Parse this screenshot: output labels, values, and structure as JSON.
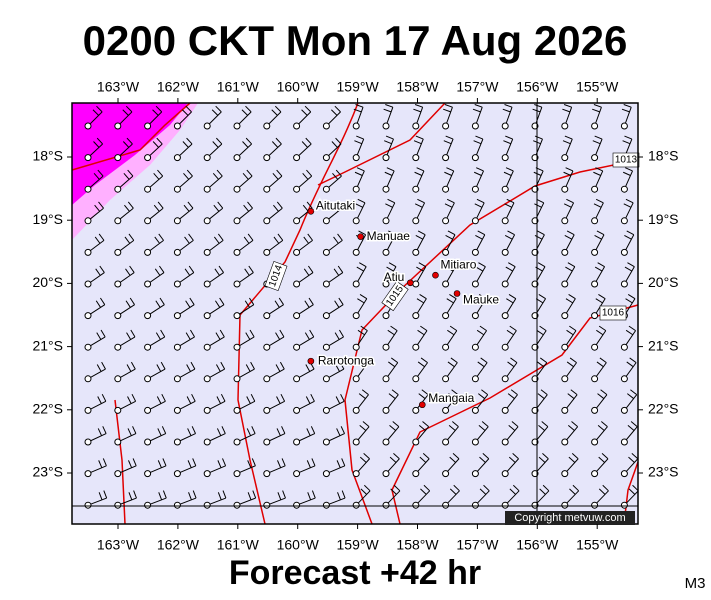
{
  "title": "0200 CKT Mon 17 Aug 2026",
  "map": {
    "lon_ticks": [
      {
        "value": -163,
        "label": "163°W"
      },
      {
        "value": -162,
        "label": "162°W"
      },
      {
        "value": -161,
        "label": "161°W"
      },
      {
        "value": -160,
        "label": "160°W"
      },
      {
        "value": -159,
        "label": "159°W"
      },
      {
        "value": -158,
        "label": "158°W"
      },
      {
        "value": -157,
        "label": "157°W"
      },
      {
        "value": -156,
        "label": "156°W"
      },
      {
        "value": -155,
        "label": "155°W"
      }
    ],
    "lat_ticks": [
      {
        "value": -18,
        "label": "18°S"
      },
      {
        "value": -19,
        "label": "19°S"
      },
      {
        "value": -20,
        "label": "20°S"
      },
      {
        "value": -21,
        "label": "21°S"
      },
      {
        "value": -22,
        "label": "22°S"
      },
      {
        "value": -23,
        "label": "23°S"
      }
    ],
    "places": [
      {
        "name": "Aitutaki",
        "lon": -159.78,
        "lat": -18.86
      },
      {
        "name": "Manuae",
        "lon": -158.95,
        "lat": -19.26
      },
      {
        "name": "Atiu",
        "lon": -158.12,
        "lat": -19.99
      },
      {
        "name": "Mitiaro",
        "lon": -157.7,
        "lat": -19.87
      },
      {
        "name": "Mauke",
        "lon": -157.34,
        "lat": -20.16
      },
      {
        "name": "Rarotonga",
        "lon": -159.78,
        "lat": -21.23
      },
      {
        "name": "Mangaia",
        "lon": -157.92,
        "lat": -21.92
      }
    ],
    "isobar_labels": [
      "1014",
      "1015",
      "1013",
      "1016"
    ]
  },
  "copyright": "Copyright metvuw.com",
  "footer": "Forecast +42 hr",
  "code": "M3"
}
